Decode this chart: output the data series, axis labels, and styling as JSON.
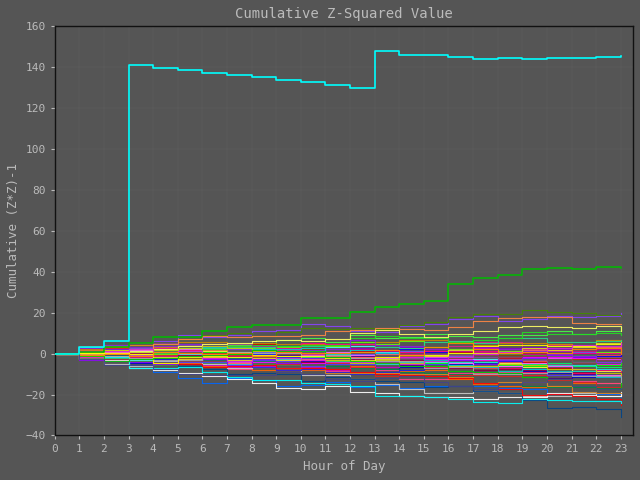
{
  "title": "Cumulative Z-Squared Value",
  "xlabel": "Hour of Day",
  "ylabel": "Cumulative (Z*Z)-1",
  "xlim": [
    0,
    23.5
  ],
  "ylim": [
    -40,
    160
  ],
  "xticks": [
    0,
    1,
    2,
    3,
    4,
    5,
    6,
    7,
    8,
    9,
    10,
    11,
    12,
    13,
    14,
    15,
    16,
    17,
    18,
    19,
    20,
    21,
    22,
    23
  ],
  "yticks": [
    -40,
    -20,
    0,
    20,
    40,
    60,
    80,
    100,
    120,
    140,
    160
  ],
  "background_color": "#555555",
  "text_color": "#bbbbbb",
  "grid_color": "#777777",
  "n_hours": 24,
  "n_series": 60,
  "seed": 7,
  "dominant_color": "#00ffff",
  "green_color": "#00bb00",
  "title_fontsize": 10,
  "label_fontsize": 9
}
